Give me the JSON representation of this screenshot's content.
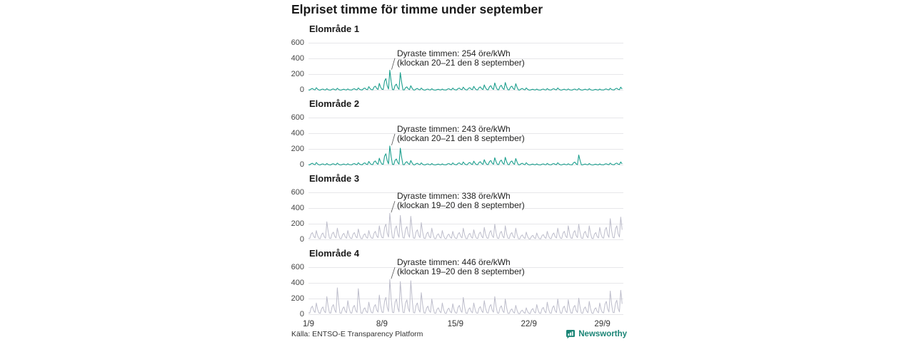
{
  "title": "Elpriset timme för timme under september",
  "source": "Källa: ENTSO-E Transparency Platform",
  "brand": {
    "name": "Newsworthy",
    "color": "#1b8576",
    "icon": "bar-chart-bubble-icon"
  },
  "colors": {
    "teal_line": "#1d9f8e",
    "gray_line": "#bdbdcb",
    "gridline": "#e7e7ea",
    "annotation_text": "#222222"
  },
  "x_axis": {
    "labels": [
      "1/9",
      "8/9",
      "15/9",
      "22/9",
      "29/9"
    ],
    "tick_days": [
      1,
      8,
      15,
      22,
      29
    ],
    "range_days": [
      1,
      31
    ]
  },
  "chart_data": [
    {
      "type": "line",
      "title": "Elområde 1",
      "unit": "öre/kWh",
      "line_color": "#1d9f8e",
      "ylim": [
        0,
        600
      ],
      "yticks": [
        0,
        200,
        400,
        600
      ],
      "annotation": {
        "line1": "Dyraste timmen: 254 öre/kWh",
        "line2": "(klockan 20–21 den 8 september)",
        "peak_value": 254,
        "peak_day": 8,
        "peak_hour": 20.5
      },
      "days_base_morning_evening": [
        [
          12,
          25,
          35
        ],
        [
          10,
          18,
          22
        ],
        [
          10,
          20,
          28
        ],
        [
          10,
          16,
          20
        ],
        [
          12,
          22,
          32
        ],
        [
          14,
          30,
          48
        ],
        [
          18,
          55,
          90
        ],
        [
          25,
          150,
          254
        ],
        [
          20,
          80,
          225
        ],
        [
          15,
          45,
          60
        ],
        [
          12,
          25,
          30
        ],
        [
          10,
          18,
          22
        ],
        [
          10,
          15,
          18
        ],
        [
          12,
          22,
          30
        ],
        [
          14,
          30,
          42
        ],
        [
          15,
          35,
          52
        ],
        [
          16,
          45,
          70
        ],
        [
          18,
          60,
          95
        ],
        [
          18,
          65,
          100
        ],
        [
          16,
          55,
          85
        ],
        [
          12,
          25,
          32
        ],
        [
          10,
          15,
          18
        ],
        [
          10,
          18,
          24
        ],
        [
          12,
          22,
          32
        ],
        [
          10,
          16,
          20
        ],
        [
          10,
          18,
          25
        ],
        [
          10,
          16,
          22
        ],
        [
          9,
          14,
          18
        ],
        [
          12,
          20,
          28
        ],
        [
          14,
          28,
          42
        ]
      ]
    },
    {
      "type": "line",
      "title": "Elområde 2",
      "unit": "öre/kWh",
      "line_color": "#1d9f8e",
      "ylim": [
        0,
        600
      ],
      "yticks": [
        0,
        200,
        400,
        600
      ],
      "annotation": {
        "line1": "Dyraste timmen: 243 öre/kWh",
        "line2": "(klockan 20–21 den 8 september)",
        "peak_value": 243,
        "peak_day": 8,
        "peak_hour": 20.5
      },
      "days_base_morning_evening": [
        [
          12,
          25,
          35
        ],
        [
          10,
          18,
          22
        ],
        [
          10,
          20,
          28
        ],
        [
          10,
          16,
          20
        ],
        [
          12,
          22,
          32
        ],
        [
          14,
          30,
          48
        ],
        [
          18,
          55,
          90
        ],
        [
          25,
          145,
          243
        ],
        [
          20,
          80,
          215
        ],
        [
          15,
          45,
          60
        ],
        [
          12,
          25,
          30
        ],
        [
          10,
          18,
          22
        ],
        [
          10,
          15,
          18
        ],
        [
          12,
          22,
          30
        ],
        [
          14,
          30,
          42
        ],
        [
          15,
          35,
          52
        ],
        [
          16,
          45,
          70
        ],
        [
          18,
          60,
          95
        ],
        [
          18,
          65,
          100
        ],
        [
          16,
          55,
          85
        ],
        [
          12,
          25,
          32
        ],
        [
          10,
          15,
          18
        ],
        [
          10,
          18,
          24
        ],
        [
          12,
          22,
          32
        ],
        [
          10,
          16,
          20
        ],
        [
          12,
          40,
          130
        ],
        [
          10,
          16,
          22
        ],
        [
          9,
          14,
          18
        ],
        [
          12,
          20,
          28
        ],
        [
          14,
          28,
          42
        ]
      ]
    },
    {
      "type": "line",
      "title": "Elområde 3",
      "unit": "öre/kWh",
      "line_color": "#bdbdcb",
      "ylim": [
        0,
        600
      ],
      "yticks": [
        0,
        200,
        400,
        600
      ],
      "annotation": {
        "line1": "Dyraste timmen: 338 öre/kWh",
        "line2": "(klockan 19–20 den 8 september)",
        "peak_value": 338,
        "peak_day": 8,
        "peak_hour": 19.5
      },
      "days_base_morning_evening": [
        [
          40,
          95,
          120
        ],
        [
          35,
          90,
          230
        ],
        [
          40,
          100,
          150
        ],
        [
          35,
          85,
          120
        ],
        [
          40,
          95,
          140
        ],
        [
          35,
          80,
          120
        ],
        [
          45,
          110,
          180
        ],
        [
          55,
          200,
          338
        ],
        [
          50,
          180,
          310
        ],
        [
          50,
          170,
          300
        ],
        [
          45,
          130,
          220
        ],
        [
          40,
          100,
          150
        ],
        [
          35,
          80,
          120
        ],
        [
          35,
          75,
          110
        ],
        [
          40,
          95,
          150
        ],
        [
          35,
          85,
          130
        ],
        [
          40,
          100,
          160
        ],
        [
          45,
          120,
          200
        ],
        [
          40,
          110,
          180
        ],
        [
          40,
          95,
          150
        ],
        [
          30,
          65,
          100
        ],
        [
          28,
          60,
          90
        ],
        [
          32,
          70,
          110
        ],
        [
          38,
          90,
          150
        ],
        [
          42,
          110,
          180
        ],
        [
          45,
          120,
          200
        ],
        [
          42,
          110,
          180
        ],
        [
          38,
          95,
          160
        ],
        [
          50,
          160,
          270
        ],
        [
          55,
          180,
          290
        ]
      ]
    },
    {
      "type": "line",
      "title": "Elområde 4",
      "unit": "öre/kWh",
      "line_color": "#bdbdcb",
      "ylim": [
        0,
        600
      ],
      "yticks": [
        0,
        200,
        400,
        600
      ],
      "annotation": {
        "line1": "Dyraste timmen: 446 öre/kWh",
        "line2": "(klockan 19–20 den 8 september)",
        "peak_value": 446,
        "peak_day": 8,
        "peak_hour": 19.5
      },
      "days_base_morning_evening": [
        [
          45,
          110,
          150
        ],
        [
          40,
          100,
          230
        ],
        [
          45,
          130,
          340
        ],
        [
          40,
          100,
          180
        ],
        [
          45,
          120,
          330
        ],
        [
          40,
          90,
          160
        ],
        [
          50,
          130,
          250
        ],
        [
          60,
          220,
          446
        ],
        [
          55,
          200,
          420
        ],
        [
          55,
          190,
          430
        ],
        [
          50,
          150,
          280
        ],
        [
          45,
          110,
          200
        ],
        [
          40,
          90,
          150
        ],
        [
          38,
          85,
          140
        ],
        [
          45,
          120,
          220
        ],
        [
          38,
          90,
          150
        ],
        [
          42,
          105,
          180
        ],
        [
          48,
          130,
          230
        ],
        [
          42,
          115,
          200
        ],
        [
          35,
          75,
          120
        ],
        [
          30,
          60,
          90
        ],
        [
          34,
          80,
          130
        ],
        [
          38,
          95,
          160
        ],
        [
          42,
          115,
          200
        ],
        [
          40,
          110,
          190
        ],
        [
          44,
          120,
          210
        ],
        [
          40,
          100,
          170
        ],
        [
          38,
          90,
          150
        ],
        [
          52,
          170,
          300
        ],
        [
          55,
          185,
          310
        ]
      ]
    }
  ]
}
